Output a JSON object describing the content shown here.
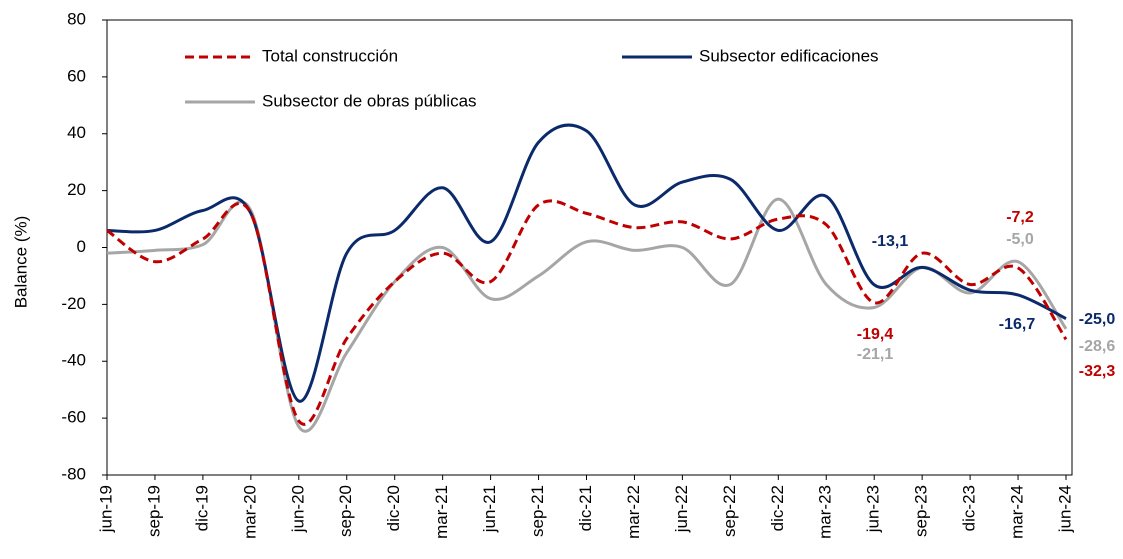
{
  "chart_data": {
    "type": "line",
    "y_label": "Balance (%)",
    "categories": [
      "jun-19",
      "sep-19",
      "dic-19",
      "mar-20",
      "jun-20",
      "sep-20",
      "dic-20",
      "mar-21",
      "jun-21",
      "sep-21",
      "dic-21",
      "mar-22",
      "jun-22",
      "sep-22",
      "dic-22",
      "mar-23",
      "jun-23",
      "sep-23",
      "dic-23",
      "mar-24",
      "jun-24"
    ],
    "ylim": [
      -80,
      80
    ],
    "yticks": [
      -80,
      -60,
      -40,
      -20,
      0,
      20,
      40,
      60,
      80
    ],
    "series": [
      {
        "name": "Total construcción",
        "color": "#c00000",
        "dash": true,
        "values": [
          6,
          -5,
          3,
          12,
          -61,
          -32,
          -12,
          -2,
          -12,
          15,
          12,
          7,
          9,
          3,
          10,
          8,
          -19.4,
          -2,
          -13,
          -7.2,
          -32.3
        ],
        "value_labels": [
          null,
          null,
          null,
          null,
          null,
          null,
          null,
          null,
          null,
          null,
          null,
          null,
          null,
          null,
          null,
          null,
          "-19,4",
          null,
          null,
          "-7,2",
          "-32,3"
        ]
      },
      {
        "name": "Subsector edificaciones",
        "color": "#0b2a6b",
        "dash": false,
        "values": [
          6,
          6,
          13,
          12,
          -54,
          -2,
          6,
          21,
          2,
          37,
          41,
          15,
          23,
          24,
          6,
          18,
          -13.1,
          -7,
          -15,
          -16.7,
          -25.0
        ],
        "value_labels": [
          null,
          null,
          null,
          null,
          null,
          null,
          null,
          null,
          null,
          null,
          null,
          null,
          null,
          null,
          null,
          null,
          "-13,1",
          null,
          null,
          "-16,7",
          "-25,0"
        ]
      },
      {
        "name": "Subsector de obras públicas",
        "color": "#a6a6a6",
        "dash": false,
        "values": [
          -2,
          -1,
          1,
          13,
          -63,
          -37,
          -12,
          0,
          -18,
          -10,
          2,
          -1,
          0,
          -13,
          17,
          -13,
          -21.1,
          -7,
          -16,
          -5.0,
          -28.6
        ],
        "value_labels": [
          null,
          null,
          null,
          null,
          null,
          null,
          null,
          null,
          null,
          null,
          null,
          null,
          null,
          null,
          null,
          null,
          "-21,1",
          null,
          null,
          "-5,0",
          "-28,6"
        ]
      }
    ]
  }
}
